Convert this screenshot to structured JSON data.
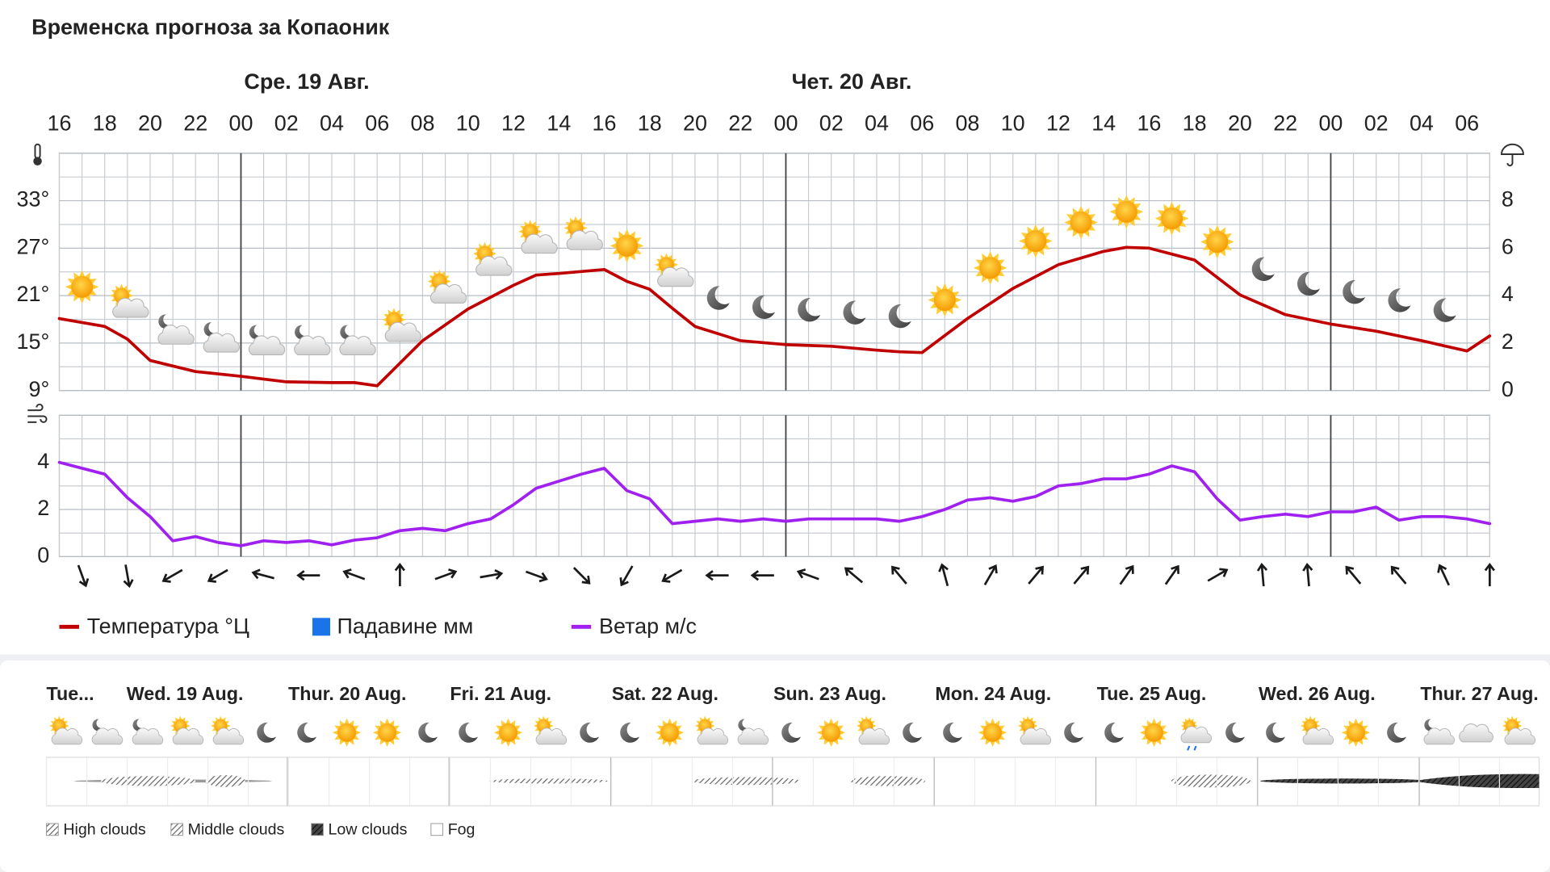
{
  "chart_data": {
    "type": "line",
    "title": "Временска прогноза за Копаоник",
    "day_headers": [
      {
        "label": "Сре. 19 Авг.",
        "x": 8
      },
      {
        "label": "Чет. 20 Авг.",
        "x": 32
      }
    ],
    "midnights": [
      8,
      32,
      56
    ],
    "xlim": [
      0,
      63
    ],
    "xticks": [
      {
        "value": 0,
        "label": "16"
      },
      {
        "value": 2,
        "label": "18"
      },
      {
        "value": 4,
        "label": "20"
      },
      {
        "value": 6,
        "label": "22"
      },
      {
        "value": 8,
        "label": "00"
      },
      {
        "value": 10,
        "label": "02"
      },
      {
        "value": 12,
        "label": "04"
      },
      {
        "value": 14,
        "label": "06"
      },
      {
        "value": 16,
        "label": "08"
      },
      {
        "value": 18,
        "label": "10"
      },
      {
        "value": 20,
        "label": "12"
      },
      {
        "value": 22,
        "label": "14"
      },
      {
        "value": 24,
        "label": "16"
      },
      {
        "value": 26,
        "label": "18"
      },
      {
        "value": 28,
        "label": "20"
      },
      {
        "value": 30,
        "label": "22"
      },
      {
        "value": 32,
        "label": "00"
      },
      {
        "value": 34,
        "label": "02"
      },
      {
        "value": 36,
        "label": "04"
      },
      {
        "value": 38,
        "label": "06"
      },
      {
        "value": 40,
        "label": "08"
      },
      {
        "value": 42,
        "label": "10"
      },
      {
        "value": 44,
        "label": "12"
      },
      {
        "value": 46,
        "label": "14"
      },
      {
        "value": 48,
        "label": "16"
      },
      {
        "value": 50,
        "label": "18"
      },
      {
        "value": 52,
        "label": "20"
      },
      {
        "value": 54,
        "label": "22"
      },
      {
        "value": 56,
        "label": "00"
      },
      {
        "value": 58,
        "label": "02"
      },
      {
        "value": 60,
        "label": "04"
      },
      {
        "value": 62,
        "label": "06"
      }
    ],
    "ylim": [
      9,
      39
    ],
    "yticks": [
      {
        "value": 9,
        "label": "9°"
      },
      {
        "value": 15,
        "label": "15°"
      },
      {
        "value": 21,
        "label": "21°"
      },
      {
        "value": 27,
        "label": "27°"
      },
      {
        "value": 33,
        "label": "33°"
      }
    ],
    "y2lim": [
      0,
      10
    ],
    "y2ticks": [
      0,
      2,
      4,
      6,
      8
    ],
    "windlim": [
      0,
      6
    ],
    "windticks": [
      0,
      2,
      4
    ],
    "series": [
      {
        "name": "Температура °Ц",
        "color": "#c00000",
        "x": [
          0,
          2,
          3,
          4,
          6,
          8,
          10,
          12,
          13,
          14,
          16,
          18,
          20,
          21,
          22,
          24,
          25,
          26,
          27,
          28,
          30,
          32,
          34,
          36,
          37,
          38,
          40,
          42,
          44,
          46,
          47,
          48,
          50,
          52,
          54,
          56,
          58,
          60,
          62,
          63
        ],
        "values": [
          18.1,
          17.1,
          15.5,
          12.8,
          11.4,
          10.8,
          10.1,
          10,
          10,
          9.6,
          15.3,
          19.3,
          22.3,
          23.6,
          23.8,
          24.3,
          22.8,
          21.8,
          19.4,
          17.1,
          15.3,
          14.8,
          14.6,
          14.1,
          13.9,
          13.8,
          18.1,
          21.9,
          24.9,
          26.6,
          27.1,
          27,
          25.5,
          21.1,
          18.6,
          17.4,
          16.5,
          15.3,
          14,
          15.9
        ]
      },
      {
        "name": "Падавине мм",
        "color": "#1a73e8",
        "axis": "y2",
        "values": []
      },
      {
        "name": "Ветар м/с",
        "color": "#a020f0",
        "axis": "wind",
        "values": [
          4.0,
          3.75,
          3.5,
          2.5,
          1.7,
          0.67,
          0.85,
          0.6,
          0.46,
          0.67,
          0.6,
          0.67,
          0.5,
          0.7,
          0.8,
          1.1,
          1.2,
          1.1,
          1.4,
          1.6,
          2.2,
          2.9,
          3.2,
          3.5,
          3.75,
          2.8,
          2.45,
          1.4,
          1.5,
          1.6,
          1.5,
          1.6,
          1.5,
          1.6,
          1.6,
          1.6,
          1.6,
          1.5,
          1.7,
          2.0,
          2.4,
          2.5,
          2.35,
          2.55,
          3.0,
          3.1,
          3.3,
          3.3,
          3.5,
          3.85,
          3.6,
          2.45,
          1.55,
          1.7,
          1.8,
          1.7,
          1.9,
          1.9,
          2.1,
          1.55,
          1.7,
          1.7,
          1.6,
          1.4
        ],
        "directions": [
          160,
          170,
          240,
          240,
          285,
          270,
          290,
          0,
          70,
          80,
          110,
          135,
          210,
          240,
          270,
          270,
          290,
          310,
          320,
          345,
          30,
          40,
          40,
          35,
          35,
          60,
          355,
          355,
          320,
          320,
          335,
          0
        ]
      }
    ],
    "icons": [
      "sun",
      "sun-cloud",
      "moon-cloud",
      "moon-cloud",
      "moon-cloud",
      "moon-cloud",
      "moon-cloud",
      "sun-cloud",
      "sun-cloud",
      "sun-cloud",
      "sun-cloud",
      "sun-cloud",
      "sun",
      "sun-cloud",
      "moon",
      "moon",
      "moon",
      "moon",
      "moon",
      "sun",
      "sun",
      "sun",
      "sun",
      "sun",
      "sun",
      "sun",
      "moon",
      "moon",
      "moon",
      "moon",
      "moon"
    ]
  },
  "forecast": {
    "days": [
      "Tue...",
      "Wed. 19 Aug.",
      "Thur. 20 Aug.",
      "Fri. 21 Aug.",
      "Sat. 22 Aug.",
      "Sun. 23 Aug.",
      "Mon. 24 Aug.",
      "Tue. 25 Aug.",
      "Wed. 26 Aug.",
      "Thur. 27 Aug."
    ],
    "icons": [
      "sun-cloud",
      "moon-cloud",
      "moon-cloud",
      "sun-cloud",
      "sun-cloud",
      "moon",
      "moon",
      "sun",
      "sun",
      "moon",
      "moon",
      "sun",
      "sun-cloud",
      "moon",
      "moon",
      "sun",
      "sun-cloud",
      "moon-cloud",
      "moon",
      "sun",
      "sun-cloud",
      "moon",
      "moon",
      "sun",
      "sun-cloud",
      "moon",
      "moon",
      "sun",
      "rain",
      "moon",
      "moon",
      "sun-cloud",
      "sun",
      "moon",
      "moon-cloud",
      "cloud",
      "sun-cloud"
    ],
    "legend": [
      "High clouds",
      "Middle clouds",
      "Low clouds",
      "Fog"
    ]
  }
}
